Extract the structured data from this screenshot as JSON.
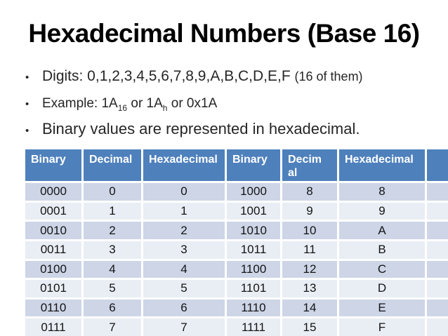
{
  "slide": {
    "title": "Hexadecimal Numbers (Base 16)",
    "bullets": [
      {
        "marker": "•",
        "main": "Digits: 0,1,2,3,4,5,6,7,8,9,A,B,C,D,E,F",
        "suffix": "(16 of them)"
      },
      {
        "marker": "•",
        "segments": [
          {
            "text": "Example: 1A"
          },
          {
            "text": "16",
            "subscript": true
          },
          {
            "text": " or 1A"
          },
          {
            "text": "h",
            "subscript": true
          },
          {
            "text": " or 0x1A"
          }
        ]
      },
      {
        "marker": "•",
        "main": "Binary values are represented in hexadecimal."
      }
    ]
  },
  "table": {
    "headers": [
      "Binary",
      "Decimal",
      "Hexadecimal",
      "Binary",
      "Decimal",
      "Hexadecimal"
    ],
    "rows": [
      [
        "0000",
        "0",
        "0",
        "1000",
        "8",
        "8"
      ],
      [
        "0001",
        "1",
        "1",
        "1001",
        "9",
        "9"
      ],
      [
        "0010",
        "2",
        "2",
        "1010",
        "10",
        "A"
      ],
      [
        "0011",
        "3",
        "3",
        "1011",
        "11",
        "B"
      ],
      [
        "0100",
        "4",
        "4",
        "1100",
        "12",
        "C"
      ],
      [
        "0101",
        "5",
        "5",
        "1101",
        "13",
        "D"
      ],
      [
        "0110",
        "6",
        "6",
        "1110",
        "14",
        "E"
      ],
      [
        "0111",
        "7",
        "7",
        "1111",
        "15",
        "F"
      ]
    ]
  },
  "colors": {
    "header_bg": "#4e80bc",
    "row_band_dark": "#cdd5e7",
    "row_band_light": "#e9edf4",
    "title_text": "#000000",
    "body_text": "#262626"
  }
}
